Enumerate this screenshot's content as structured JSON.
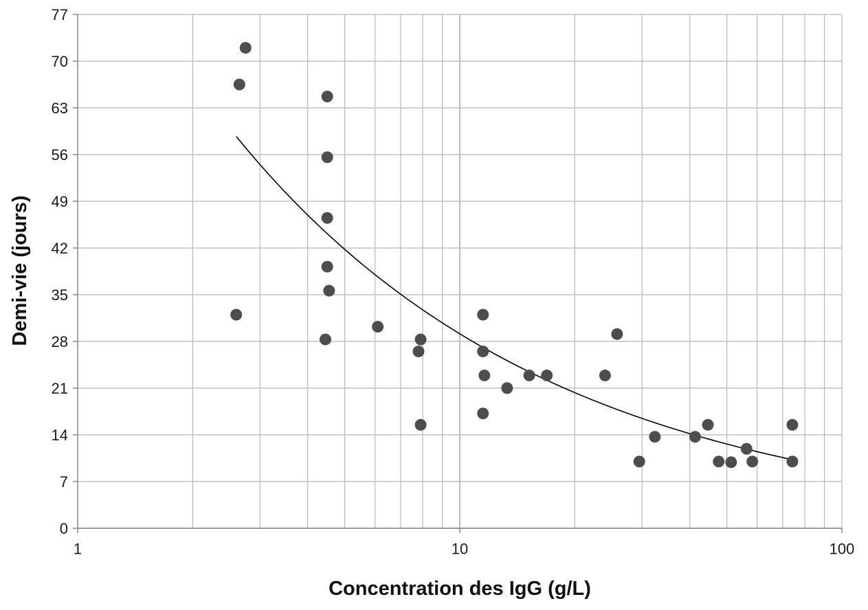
{
  "chart_data": {
    "type": "scatter",
    "title": "",
    "xlabel": "Concentration des IgG (g/L)",
    "ylabel": "Demi-vie (jours)",
    "x_scale": "log",
    "xlim": [
      1,
      100
    ],
    "ylim": [
      0,
      77
    ],
    "x_ticks": [
      "1",
      "10",
      "100"
    ],
    "y_ticks": [
      "0",
      "7",
      "14",
      "21",
      "28",
      "35",
      "42",
      "49",
      "56",
      "63",
      "70",
      "77"
    ],
    "grid": true,
    "legend": "none",
    "colors": {
      "points": "#4d4d4d",
      "trend": "#000000",
      "grid": "#b8b8b8",
      "axis": "#7f7f7f"
    },
    "series": [
      {
        "kind": "points",
        "points": [
          [
            2.75,
            72
          ],
          [
            2.65,
            66.5
          ],
          [
            2.6,
            32
          ],
          [
            4.5,
            64.7
          ],
          [
            4.5,
            55.6
          ],
          [
            4.5,
            46.5
          ],
          [
            4.5,
            39.2
          ],
          [
            4.55,
            35.6
          ],
          [
            4.45,
            28.3
          ],
          [
            6.1,
            30.2
          ],
          [
            7.8,
            26.5
          ],
          [
            7.9,
            28.3
          ],
          [
            7.9,
            15.5
          ],
          [
            11.5,
            32
          ],
          [
            11.5,
            26.5
          ],
          [
            11.6,
            22.9
          ],
          [
            11.5,
            17.2
          ],
          [
            13.3,
            21
          ],
          [
            15.2,
            22.9
          ],
          [
            16.9,
            22.9
          ],
          [
            24,
            22.9
          ],
          [
            25.8,
            29.1
          ],
          [
            29.5,
            10
          ],
          [
            32.4,
            13.7
          ],
          [
            41.3,
            13.7
          ],
          [
            44.6,
            15.5
          ],
          [
            47.6,
            10
          ],
          [
            51.3,
            9.9
          ],
          [
            56.3,
            11.9
          ],
          [
            58.3,
            10
          ],
          [
            74.2,
            15.5
          ],
          [
            74.2,
            10
          ]
        ]
      },
      {
        "kind": "trend",
        "fit": "power",
        "a": 96.5,
        "b": -0.52,
        "x_range": [
          2.6,
          74.2
        ]
      }
    ]
  }
}
